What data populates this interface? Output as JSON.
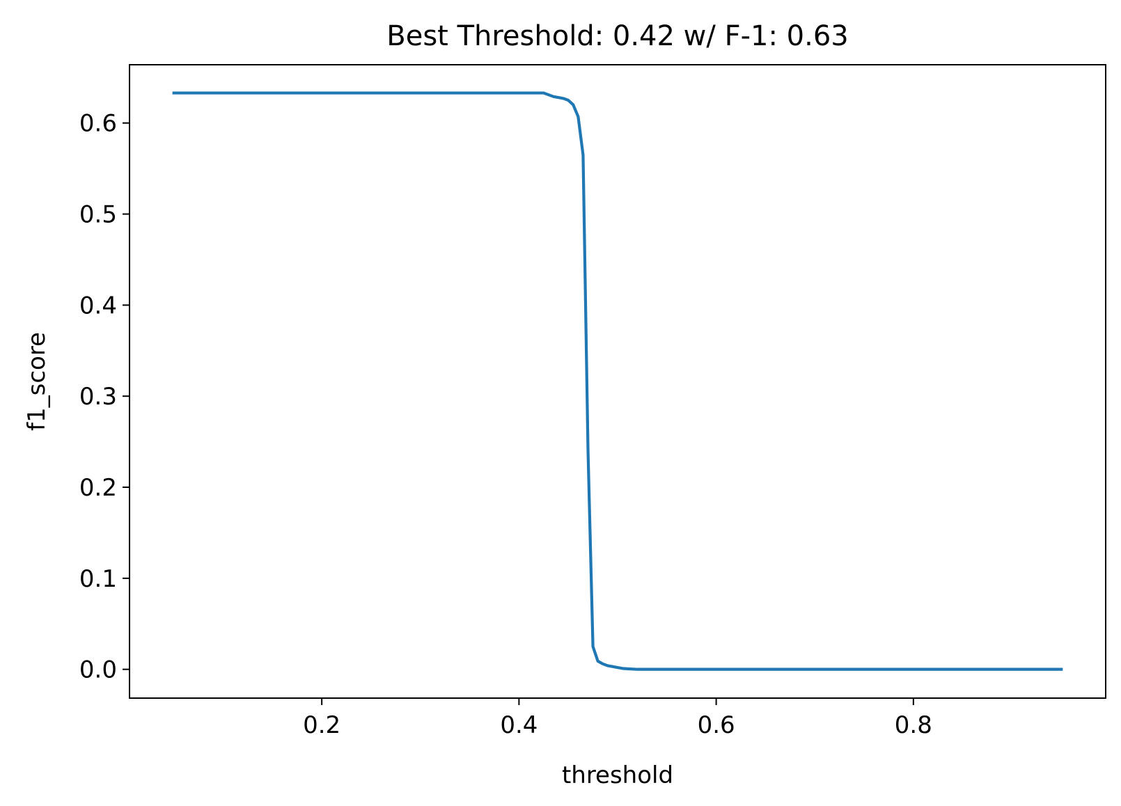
{
  "chart_data": {
    "type": "line",
    "title": "Best Threshold: 0.42 w/ F-1: 0.63",
    "xlabel": "threshold",
    "ylabel": "f1_score",
    "xlim": [
      0.005,
      0.995
    ],
    "ylim": [
      -0.0316,
      0.664
    ],
    "xticks": [
      0.2,
      0.4,
      0.6,
      0.8
    ],
    "xtick_labels": [
      "0.2",
      "0.4",
      "0.6",
      "0.8"
    ],
    "yticks": [
      0.0,
      0.1,
      0.2,
      0.3,
      0.4,
      0.5,
      0.6
    ],
    "ytick_labels": [
      "0.0",
      "0.1",
      "0.2",
      "0.3",
      "0.4",
      "0.5",
      "0.6"
    ],
    "grid": false,
    "legend": "none",
    "series": [
      {
        "color": "#1f77b4",
        "x": [
          0.05,
          0.1,
          0.15,
          0.2,
          0.25,
          0.3,
          0.35,
          0.4,
          0.42,
          0.425,
          0.43,
          0.435,
          0.44,
          0.445,
          0.45,
          0.455,
          0.46,
          0.465,
          0.47,
          0.475,
          0.48,
          0.485,
          0.49,
          0.495,
          0.5,
          0.505,
          0.51,
          0.515,
          0.52,
          0.55,
          0.6,
          0.65,
          0.7,
          0.75,
          0.8,
          0.85,
          0.9,
          0.95
        ],
        "y": [
          0.633,
          0.633,
          0.633,
          0.633,
          0.633,
          0.633,
          0.633,
          0.633,
          0.633,
          0.633,
          0.631,
          0.629,
          0.628,
          0.627,
          0.625,
          0.62,
          0.607,
          0.565,
          0.24,
          0.025,
          0.009,
          0.006,
          0.004,
          0.003,
          0.002,
          0.001,
          0.0006,
          0.0003,
          0.0,
          0.0,
          0.0,
          0.0,
          0.0,
          0.0,
          0.0,
          0.0,
          0.0,
          0.0
        ]
      }
    ]
  }
}
